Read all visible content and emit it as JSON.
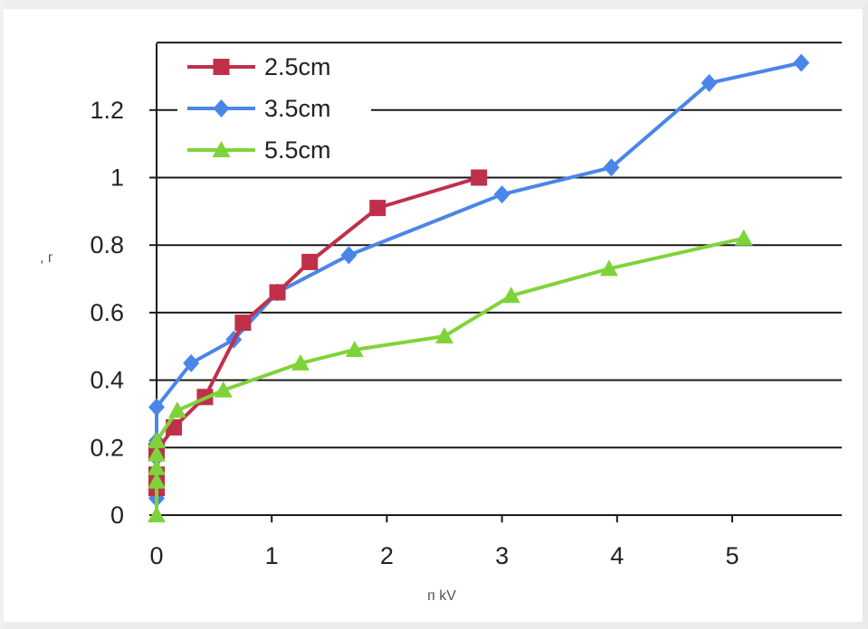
{
  "chart_data": {
    "type": "line",
    "title": "",
    "xlabel": "п kV",
    "ylabel": ", г",
    "xlim": [
      0,
      6
    ],
    "ylim": [
      0,
      1.4
    ],
    "x_ticks": [
      "0",
      "1",
      "2",
      "3",
      "4",
      "5"
    ],
    "y_ticks": [
      "0",
      "0.2",
      "0.4",
      "0.6",
      "0.8",
      "1",
      "1.2"
    ],
    "grid": "horizontal",
    "legend_position": "top-left",
    "series": [
      {
        "name": "2.5cm",
        "color": "#c0304a",
        "marker": "square",
        "x": [
          0,
          0,
          0,
          0,
          0.15,
          0.42,
          0.75,
          1.05,
          1.33,
          1.92,
          2.8
        ],
        "y": [
          0.08,
          0.1,
          0.12,
          0.19,
          0.26,
          0.35,
          0.57,
          0.66,
          0.75,
          0.91,
          1.0
        ]
      },
      {
        "name": "3.5cm",
        "color": "#4a86e8",
        "marker": "diamond",
        "x": [
          0,
          0,
          0,
          0,
          0,
          0.3,
          0.67,
          1.05,
          1.67,
          3.0,
          3.95,
          4.8,
          5.6
        ],
        "y": [
          0.05,
          0.1,
          0.17,
          0.22,
          0.32,
          0.45,
          0.52,
          0.66,
          0.77,
          0.95,
          1.03,
          1.28,
          1.34
        ]
      },
      {
        "name": "5.5cm",
        "color": "#7fd33a",
        "marker": "triangle",
        "x": [
          0,
          0,
          0,
          0,
          0,
          0.18,
          0.58,
          1.25,
          1.72,
          2.5,
          3.08,
          3.93,
          5.1
        ],
        "y": [
          0.0,
          0.1,
          0.14,
          0.18,
          0.22,
          0.31,
          0.37,
          0.45,
          0.49,
          0.53,
          0.65,
          0.73,
          0.82
        ]
      }
    ]
  }
}
